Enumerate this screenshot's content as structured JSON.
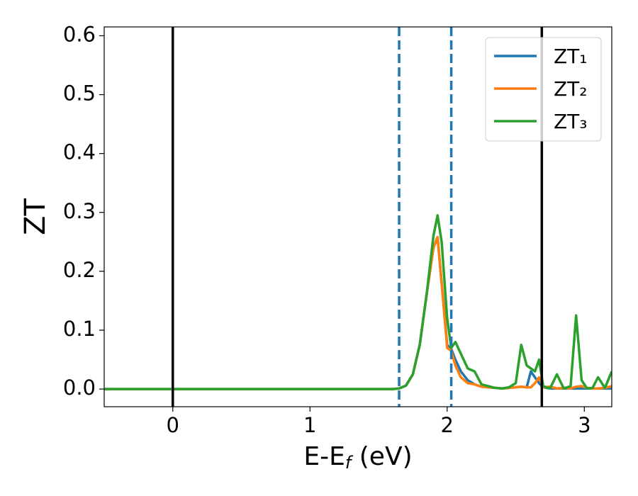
{
  "chart_data": {
    "type": "line",
    "xlabel": "E-Ef (eV)",
    "ylabel": "ZT",
    "xlim": [
      -0.5,
      3.2
    ],
    "ylim": [
      -0.03,
      0.615
    ],
    "xticks": [
      0,
      1,
      2,
      3
    ],
    "yticks": [
      {
        "value": 0,
        "label": "0.0"
      },
      0.1,
      0.2,
      0.3,
      0.4,
      0.5,
      0.6
    ],
    "grid": false,
    "legend": "upper right",
    "vlines": [
      {
        "x": 0,
        "color": "#000000",
        "dashed": false
      },
      {
        "x": 2.69,
        "color": "#000000",
        "dashed": false
      },
      {
        "x": 1.65,
        "color": "#1f77b4",
        "dashed": true
      },
      {
        "x": 2.03,
        "color": "#1f77b4",
        "dashed": true
      }
    ],
    "x": [
      -0.5,
      1.6,
      1.65,
      1.7,
      1.75,
      1.8,
      1.85,
      1.9,
      1.93,
      1.96,
      2.0,
      2.03,
      2.06,
      2.1,
      2.15,
      2.2,
      2.25,
      2.3,
      2.35,
      2.4,
      2.45,
      2.5,
      2.54,
      2.58,
      2.61,
      2.64,
      2.67,
      2.7,
      2.75,
      2.8,
      2.85,
      2.9,
      2.94,
      2.98,
      3.02,
      3.06,
      3.1,
      3.15,
      3.2
    ],
    "series": [
      {
        "name": "ZT₁",
        "color": "#1f77b4",
        "values": [
          0,
          0,
          0.001,
          0.006,
          0.025,
          0.075,
          0.16,
          0.24,
          0.258,
          0.18,
          0.075,
          0.068,
          0.05,
          0.03,
          0.015,
          0.008,
          0.004,
          0.003,
          0.002,
          0.001,
          0.002,
          0.003,
          0.004,
          0.003,
          0.03,
          0.02,
          0.01,
          0.003,
          0.001,
          0.001,
          0.001,
          0.001,
          0.001,
          0.001,
          0.001,
          0.001,
          0.001,
          0.001,
          0.001
        ]
      },
      {
        "name": "ZT₂",
        "color": "#ff7f0e",
        "values": [
          0,
          0,
          0.001,
          0.006,
          0.025,
          0.075,
          0.16,
          0.24,
          0.258,
          0.18,
          0.07,
          0.065,
          0.04,
          0.02,
          0.01,
          0.008,
          0.004,
          0.003,
          0.002,
          0.001,
          0.002,
          0.003,
          0.004,
          0.003,
          0.003,
          0.01,
          0.02,
          0.003,
          0.004,
          0.001,
          0.002,
          0.001,
          0.004,
          0.005,
          0.002,
          0.001,
          0.001,
          0.002,
          0.005
        ]
      },
      {
        "name": "ZT₃",
        "color": "#2ca02c",
        "values": [
          0,
          0,
          0.001,
          0.006,
          0.025,
          0.075,
          0.16,
          0.26,
          0.295,
          0.25,
          0.12,
          0.07,
          0.08,
          0.06,
          0.035,
          0.03,
          0.008,
          0.005,
          0.002,
          0.001,
          0.003,
          0.01,
          0.075,
          0.04,
          0.035,
          0.03,
          0.05,
          0.005,
          0.001,
          0.025,
          0.001,
          0.005,
          0.125,
          0.015,
          0.001,
          0.002,
          0.02,
          0.002,
          0.03
        ]
      }
    ]
  }
}
